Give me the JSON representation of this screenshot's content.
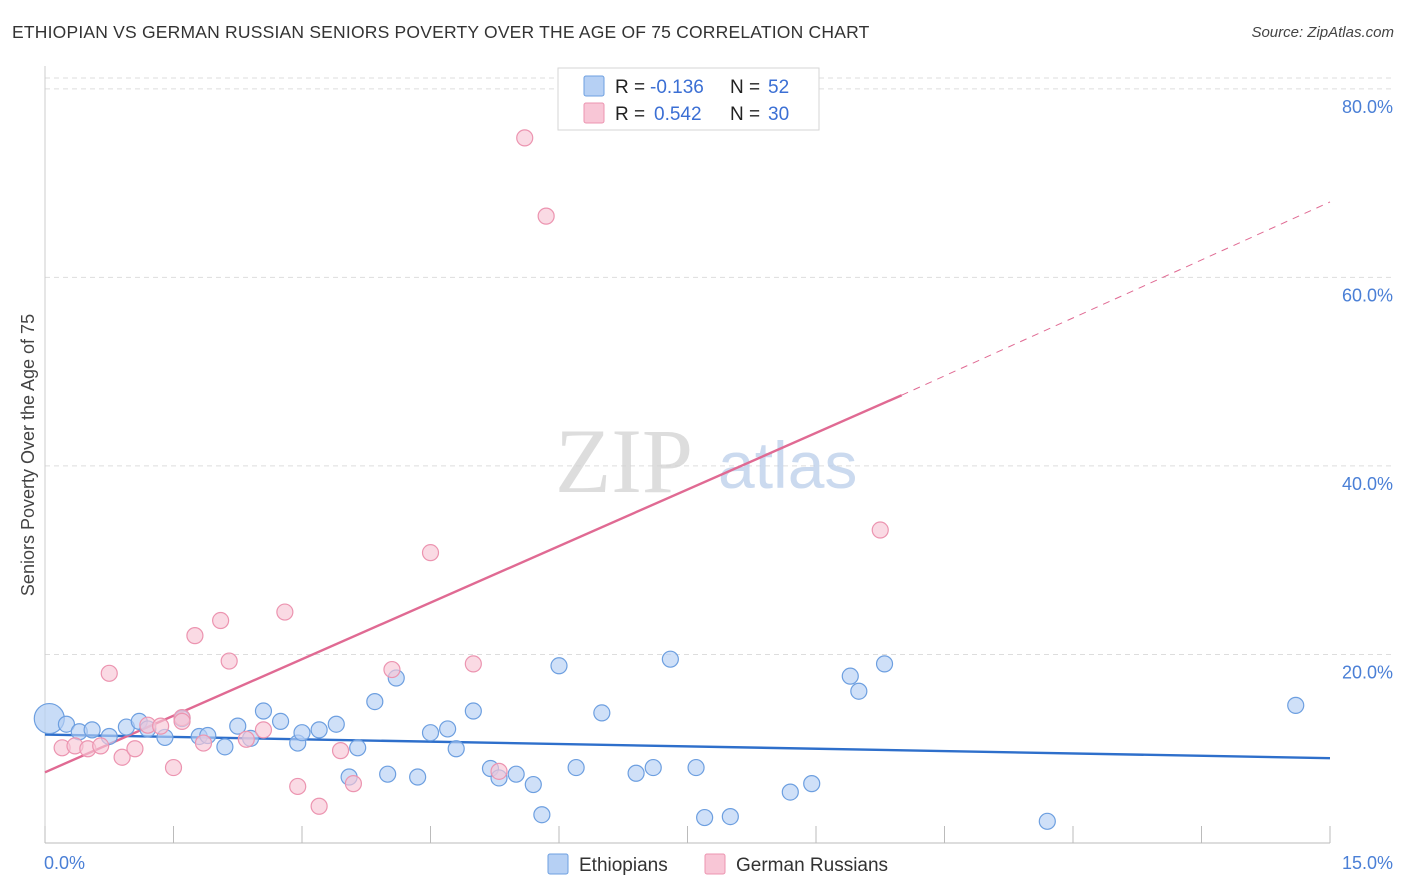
{
  "header": {
    "title": "ETHIOPIAN VS GERMAN RUSSIAN SENIORS POVERTY OVER THE AGE OF 75 CORRELATION CHART",
    "source": "Source: ZipAtlas.com"
  },
  "watermark": {
    "zip": "ZIP",
    "atlas": "atlas"
  },
  "colors": {
    "ethiopians_fill": "#b6d0f4",
    "ethiopians_stroke": "#6d9fe0",
    "ethiopians_line": "#2e6fcb",
    "german_fill": "#f8c6d6",
    "german_stroke": "#ec94b0",
    "german_line": "#e06a93",
    "tick_text": "#4a7fd6",
    "grid": "#dddddd"
  },
  "stats_box": {
    "rows": [
      {
        "r_label": "R =",
        "r_value": "-0.136",
        "n_label": "N =",
        "n_value": "52"
      },
      {
        "r_label": "R =",
        "r_value": "0.542",
        "n_label": "N =",
        "n_value": "30"
      }
    ]
  },
  "chart_data": {
    "type": "scatter",
    "xlabel": "",
    "ylabel": "Seniors Poverty Over the Age of 75",
    "xlim": [
      0,
      15
    ],
    "ylim": [
      0,
      82
    ],
    "x_tick_labels": [
      {
        "value": 0,
        "label": "0.0%"
      },
      {
        "value": 15,
        "label": "15.0%"
      }
    ],
    "y_tick_labels": [
      {
        "value": 20,
        "label": "20.0%"
      },
      {
        "value": 40,
        "label": "40.0%"
      },
      {
        "value": 60,
        "label": "60.0%"
      },
      {
        "value": 80,
        "label": "80.0%"
      }
    ],
    "grid": true,
    "legend_position": "bottom-center",
    "series": [
      {
        "name": "Ethiopians",
        "points": [
          [
            0.05,
            13.2
          ],
          [
            0.25,
            12.6
          ],
          [
            0.4,
            11.8
          ],
          [
            0.55,
            12.0
          ],
          [
            0.75,
            11.3
          ],
          [
            0.95,
            12.3
          ],
          [
            1.1,
            12.9
          ],
          [
            1.2,
            12.1
          ],
          [
            1.4,
            11.2
          ],
          [
            1.6,
            13.2
          ],
          [
            1.8,
            11.3
          ],
          [
            1.9,
            11.4
          ],
          [
            2.1,
            10.2
          ],
          [
            2.25,
            12.4
          ],
          [
            2.4,
            11.1
          ],
          [
            2.55,
            14.0
          ],
          [
            2.75,
            12.9
          ],
          [
            2.95,
            10.6
          ],
          [
            3.0,
            11.7
          ],
          [
            3.2,
            12.0
          ],
          [
            3.4,
            12.6
          ],
          [
            3.55,
            7.0
          ],
          [
            3.65,
            10.1
          ],
          [
            3.85,
            15.0
          ],
          [
            4.0,
            7.3
          ],
          [
            4.1,
            17.5
          ],
          [
            4.35,
            7.0
          ],
          [
            4.5,
            11.7
          ],
          [
            4.7,
            12.1
          ],
          [
            4.8,
            10.0
          ],
          [
            5.0,
            14.0
          ],
          [
            5.2,
            7.9
          ],
          [
            5.3,
            6.9
          ],
          [
            5.5,
            7.3
          ],
          [
            5.7,
            6.2
          ],
          [
            5.8,
            3.0
          ],
          [
            6.0,
            18.8
          ],
          [
            6.2,
            8.0
          ],
          [
            6.5,
            13.8
          ],
          [
            6.9,
            7.4
          ],
          [
            7.1,
            8.0
          ],
          [
            7.3,
            19.5
          ],
          [
            7.6,
            8.0
          ],
          [
            7.7,
            2.7
          ],
          [
            8.0,
            2.8
          ],
          [
            8.7,
            5.4
          ],
          [
            8.95,
            6.3
          ],
          [
            9.4,
            17.7
          ],
          [
            9.5,
            16.1
          ],
          [
            9.8,
            19.0
          ],
          [
            11.7,
            2.3
          ],
          [
            14.6,
            14.6
          ]
        ]
      },
      {
        "name": "German Russians",
        "points": [
          [
            0.2,
            10.1
          ],
          [
            0.35,
            10.3
          ],
          [
            0.5,
            10.0
          ],
          [
            0.65,
            10.3
          ],
          [
            0.75,
            18.0
          ],
          [
            0.9,
            9.1
          ],
          [
            1.05,
            10.0
          ],
          [
            1.2,
            12.5
          ],
          [
            1.35,
            12.4
          ],
          [
            1.5,
            8.0
          ],
          [
            1.6,
            13.3
          ],
          [
            1.75,
            22.0
          ],
          [
            1.85,
            10.6
          ],
          [
            2.05,
            23.6
          ],
          [
            2.15,
            19.3
          ],
          [
            2.35,
            11.0
          ],
          [
            2.55,
            12.0
          ],
          [
            2.8,
            24.5
          ],
          [
            2.95,
            6.0
          ],
          [
            3.2,
            3.9
          ],
          [
            3.45,
            9.8
          ],
          [
            3.6,
            6.3
          ],
          [
            4.05,
            18.4
          ],
          [
            4.5,
            30.8
          ],
          [
            5.0,
            19.0
          ],
          [
            5.3,
            7.6
          ],
          [
            5.6,
            74.8
          ],
          [
            5.85,
            66.5
          ],
          [
            9.75,
            33.2
          ],
          [
            1.6,
            12.9
          ]
        ]
      }
    ],
    "trend_lines": [
      {
        "series": "Ethiopians",
        "x": [
          0,
          15
        ],
        "y": [
          11.5,
          9.0
        ],
        "style": "solid"
      },
      {
        "series": "German Russians",
        "x": [
          0,
          10
        ],
        "y": [
          7.5,
          47.5
        ],
        "style": "solid"
      },
      {
        "series": "German Russians",
        "x": [
          10,
          15
        ],
        "y": [
          47.5,
          68.0
        ],
        "style": "dashed"
      }
    ]
  }
}
